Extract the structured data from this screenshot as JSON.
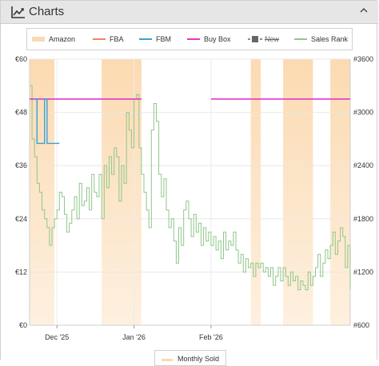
{
  "panel": {
    "title": "Charts",
    "icon": "line-chart-icon",
    "collapse_icon": "chevron-up-icon"
  },
  "legend": [
    {
      "label": "Amazon",
      "color": "#fbd9b2",
      "style": "area",
      "disabled": false
    },
    {
      "label": "FBA",
      "color": "#f0836b",
      "style": "line",
      "disabled": false
    },
    {
      "label": "FBM",
      "color": "#3aa0d6",
      "style": "line",
      "disabled": false
    },
    {
      "label": "Buy Box",
      "color": "#e536c7",
      "style": "line",
      "disabled": false
    },
    {
      "label": "New",
      "color": "#666666",
      "style": "marker",
      "disabled": true
    },
    {
      "label": "Sales Rank",
      "color": "#8fc78a",
      "style": "line",
      "disabled": false
    }
  ],
  "monthly_sold_button": {
    "label": "Monthly Sold",
    "color": "#fbd9b2"
  },
  "chart_data": {
    "type": "line",
    "x_labels": [
      "Dec '25",
      "Jan '26",
      "Feb '26"
    ],
    "y_left_labels": [
      "€0",
      "€12",
      "€24",
      "€36",
      "€48",
      "€60"
    ],
    "y_right_labels": [
      "#600",
      "#1200",
      "#1800",
      "#2400",
      "#3000",
      "#3600"
    ],
    "y_left_range": [
      0,
      60
    ],
    "y_right_range": [
      600,
      3600
    ],
    "grid": true,
    "legend_position": "top",
    "amazon_in_stock_periods": [
      [
        "2025-11-20",
        "2025-11-30"
      ],
      [
        "2025-12-19",
        "2026-01-04"
      ],
      [
        "2026-02-17",
        "2026-02-21"
      ],
      [
        "2026-03-02",
        "2026-03-14"
      ],
      [
        "2026-03-21",
        "2026-03-29"
      ]
    ],
    "series": [
      {
        "name": "Buy Box",
        "axis": "left",
        "points": [
          [
            "2025-11-20",
            51
          ],
          [
            "2026-01-04",
            51
          ],
          [
            "2026-01-04",
            null
          ],
          [
            "2026-02-01",
            51
          ],
          [
            "2026-03-29",
            51
          ]
        ]
      },
      {
        "name": "FBM",
        "axis": "left",
        "points": [
          [
            "2025-11-22",
            51
          ],
          [
            "2025-11-23",
            41
          ],
          [
            "2025-11-26",
            41
          ],
          [
            "2025-11-26",
            51
          ],
          [
            "2025-11-27",
            51
          ],
          [
            "2025-11-27",
            41
          ],
          [
            "2025-12-02",
            41
          ]
        ]
      },
      {
        "name": "Sales Rank",
        "axis": "right",
        "points": [
          [
            "2025-11-20",
            3300
          ],
          [
            "2025-11-21",
            2700
          ],
          [
            "2025-11-22",
            2500
          ],
          [
            "2025-11-23",
            2200
          ],
          [
            "2025-11-24",
            2100
          ],
          [
            "2025-11-25",
            1900
          ],
          [
            "2025-11-26",
            1800
          ],
          [
            "2025-11-27",
            1700
          ],
          [
            "2025-11-28",
            1500
          ],
          [
            "2025-11-29",
            1700
          ],
          [
            "2025-11-30",
            1800
          ],
          [
            "2025-12-01",
            1900
          ],
          [
            "2025-12-02",
            2100
          ],
          [
            "2025-12-03",
            2050
          ],
          [
            "2025-12-04",
            1850
          ],
          [
            "2025-12-05",
            1650
          ],
          [
            "2025-12-06",
            1750
          ],
          [
            "2025-12-07",
            1900
          ],
          [
            "2025-12-08",
            2050
          ],
          [
            "2025-12-09",
            1800
          ],
          [
            "2025-12-10",
            2200
          ],
          [
            "2025-12-11",
            1950
          ],
          [
            "2025-12-12",
            2000
          ],
          [
            "2025-12-13",
            2150
          ],
          [
            "2025-12-14",
            1900
          ],
          [
            "2025-12-15",
            2300
          ],
          [
            "2025-12-16",
            2100
          ],
          [
            "2025-12-17",
            2050
          ],
          [
            "2025-12-18",
            2300
          ],
          [
            "2025-12-19",
            1800
          ],
          [
            "2025-12-20",
            2400
          ],
          [
            "2025-12-21",
            2150
          ],
          [
            "2025-12-22",
            2500
          ],
          [
            "2025-12-23",
            2300
          ],
          [
            "2025-12-24",
            2600
          ],
          [
            "2025-12-25",
            2500
          ],
          [
            "2025-12-26",
            2000
          ],
          [
            "2025-12-27",
            2400
          ],
          [
            "2025-12-28",
            2200
          ],
          [
            "2025-12-29",
            3000
          ],
          [
            "2025-12-30",
            2800
          ],
          [
            "2025-12-31",
            2600
          ],
          [
            "2026-01-01",
            3150
          ],
          [
            "2026-01-02",
            3200
          ],
          [
            "2026-01-03",
            2600
          ],
          [
            "2026-01-04",
            2300
          ],
          [
            "2026-01-05",
            2100
          ],
          [
            "2026-01-06",
            1900
          ],
          [
            "2026-01-07",
            1700
          ],
          [
            "2026-01-08",
            2800
          ],
          [
            "2026-01-09",
            3100
          ],
          [
            "2026-01-10",
            2900
          ],
          [
            "2026-01-11",
            2300
          ],
          [
            "2026-01-12",
            2050
          ],
          [
            "2026-01-13",
            2250
          ],
          [
            "2026-01-14",
            1900
          ],
          [
            "2026-01-15",
            1700
          ],
          [
            "2026-01-16",
            1800
          ],
          [
            "2026-01-17",
            1550
          ],
          [
            "2026-01-18",
            1300
          ],
          [
            "2026-01-19",
            1700
          ],
          [
            "2026-01-20",
            1500
          ],
          [
            "2026-01-21",
            1900
          ],
          [
            "2026-01-22",
            2000
          ],
          [
            "2026-01-23",
            1800
          ],
          [
            "2026-01-24",
            1600
          ],
          [
            "2026-01-25",
            1850
          ],
          [
            "2026-01-26",
            1650
          ],
          [
            "2026-01-27",
            1750
          ],
          [
            "2026-01-28",
            1500
          ],
          [
            "2026-01-29",
            1700
          ],
          [
            "2026-01-30",
            1550
          ],
          [
            "2026-01-31",
            1650
          ],
          [
            "2026-02-01",
            1500
          ],
          [
            "2026-02-02",
            1600
          ],
          [
            "2026-02-03",
            1450
          ],
          [
            "2026-02-04",
            1550
          ],
          [
            "2026-02-05",
            1350
          ],
          [
            "2026-02-06",
            1650
          ],
          [
            "2026-02-07",
            1450
          ],
          [
            "2026-02-08",
            1550
          ],
          [
            "2026-02-09",
            1500
          ],
          [
            "2026-02-10",
            1650
          ],
          [
            "2026-02-11",
            1450
          ],
          [
            "2026-02-12",
            1300
          ],
          [
            "2026-02-13",
            1400
          ],
          [
            "2026-02-14",
            1200
          ],
          [
            "2026-02-15",
            1350
          ],
          [
            "2026-02-16",
            1250
          ],
          [
            "2026-02-17",
            1300
          ],
          [
            "2026-02-18",
            1150
          ],
          [
            "2026-02-19",
            1300
          ],
          [
            "2026-02-20",
            1250
          ],
          [
            "2026-02-21",
            1300
          ],
          [
            "2026-02-22",
            1200
          ],
          [
            "2026-02-23",
            1250
          ],
          [
            "2026-02-24",
            1150
          ],
          [
            "2026-02-25",
            1250
          ],
          [
            "2026-02-26",
            1050
          ],
          [
            "2026-02-27",
            1150
          ],
          [
            "2026-02-28",
            1250
          ],
          [
            "2026-03-01",
            1100
          ],
          [
            "2026-03-02",
            1250
          ],
          [
            "2026-03-03",
            1150
          ],
          [
            "2026-03-04",
            1050
          ],
          [
            "2026-03-05",
            1200
          ],
          [
            "2026-03-06",
            1100
          ],
          [
            "2026-03-07",
            1150
          ],
          [
            "2026-03-08",
            1000
          ],
          [
            "2026-03-09",
            1100
          ],
          [
            "2026-03-10",
            1050
          ],
          [
            "2026-03-11",
            1000
          ],
          [
            "2026-03-12",
            1200
          ],
          [
            "2026-03-13",
            1050
          ],
          [
            "2026-03-14",
            1150
          ],
          [
            "2026-03-15",
            1250
          ],
          [
            "2026-03-16",
            1400
          ],
          [
            "2026-03-17",
            1150
          ],
          [
            "2026-03-18",
            1300
          ],
          [
            "2026-03-19",
            1450
          ],
          [
            "2026-03-20",
            1350
          ],
          [
            "2026-03-21",
            1500
          ],
          [
            "2026-03-22",
            1650
          ],
          [
            "2026-03-23",
            1400
          ],
          [
            "2026-03-24",
            1550
          ],
          [
            "2026-03-25",
            1700
          ],
          [
            "2026-03-26",
            1600
          ],
          [
            "2026-03-27",
            1250
          ],
          [
            "2026-03-28",
            1500
          ],
          [
            "2026-03-29",
            1000
          ]
        ]
      }
    ]
  }
}
